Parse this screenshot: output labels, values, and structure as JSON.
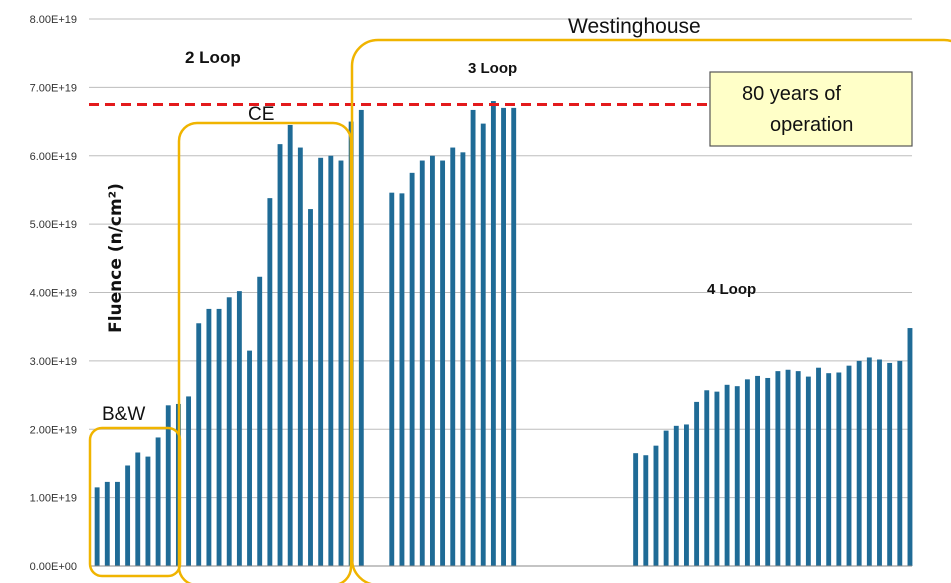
{
  "chart_data": {
    "type": "bar",
    "ylabel": "Fluence (n/cm²)",
    "ylim": [
      0,
      8e+19
    ],
    "y_ticks": [
      "0.00E+00",
      "1.00E+19",
      "2.00E+19",
      "3.00E+19",
      "4.00E+19",
      "5.00E+19",
      "6.00E+19",
      "7.00E+19",
      "8.00E+19"
    ],
    "grid": true,
    "bar_color": "#1f6b96",
    "reference_line": {
      "value": 6.75e+19,
      "color": "#e31a1c",
      "style": "dashed"
    },
    "annotation": {
      "line1": "80 years of",
      "line2": "operation",
      "fill": "#ffffc8",
      "border": "#555555"
    },
    "group_labels": {
      "bw": "B&W",
      "ce": "CE",
      "westinghouse": "Westinghouse",
      "two_loop": "2 Loop",
      "three_loop": "3 Loop",
      "four_loop": "4 Loop"
    },
    "group_box_color": "#f0b400",
    "values": [
      1.15e+19,
      1.23e+19,
      1.23e+19,
      1.47e+19,
      1.66e+19,
      1.6e+19,
      1.88e+19,
      2.35e+19,
      2.37e+19,
      2.48e+19,
      3.55e+19,
      3.76e+19,
      3.76e+19,
      3.93e+19,
      4.02e+19,
      3.15e+19,
      4.23e+19,
      5.38e+19,
      6.17e+19,
      6.45e+19,
      6.12e+19,
      5.22e+19,
      5.97e+19,
      6e+19,
      5.93e+19,
      6.5e+19,
      6.67e+19,
      null,
      null,
      5.46e+19,
      5.45e+19,
      5.75e+19,
      5.93e+19,
      6e+19,
      5.93e+19,
      6.12e+19,
      6.05e+19,
      6.67e+19,
      6.47e+19,
      6.8e+19,
      6.7e+19,
      6.7e+19,
      null,
      null,
      null,
      null,
      null,
      null,
      null,
      null,
      null,
      null,
      null,
      1.65e+19,
      1.62e+19,
      1.76e+19,
      1.98e+19,
      2.05e+19,
      2.07e+19,
      2.4e+19,
      2.57e+19,
      2.55e+19,
      2.65e+19,
      2.63e+19,
      2.73e+19,
      2.78e+19,
      2.75e+19,
      2.85e+19,
      2.87e+19,
      2.85e+19,
      2.77e+19,
      2.9e+19,
      2.82e+19,
      2.83e+19,
      2.93e+19,
      3e+19,
      3.05e+19,
      3.02e+19,
      2.97e+19,
      3e+19,
      3.48e+19
    ]
  }
}
